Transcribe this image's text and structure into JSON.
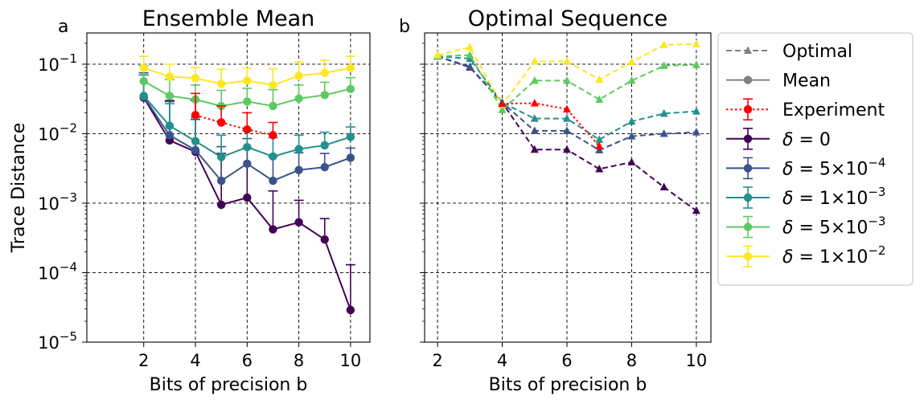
{
  "chart_data": [
    {
      "type": "line",
      "panel_letter": "a",
      "title": "Ensemble Mean",
      "xlabel": "Bits of precision b",
      "ylabel": "Trace Distance",
      "xlim": [
        -0.2,
        10.75
      ],
      "ylim_log10": [
        -5,
        -0.55
      ],
      "yscale": "log",
      "xticks": [
        2,
        4,
        6,
        8,
        10
      ],
      "xtick_labels": [
        "2",
        "4",
        "6",
        "8",
        "10"
      ],
      "yticks": [
        1e-05,
        0.0001,
        0.001,
        0.01,
        0.1
      ],
      "ytick_labels": [
        {
          "base": "10",
          "exp": "−5"
        },
        {
          "base": "10",
          "exp": "−4"
        },
        {
          "base": "10",
          "exp": "−3"
        },
        {
          "base": "10",
          "exp": "−2"
        },
        {
          "base": "10",
          "exp": "−1"
        }
      ],
      "grid": true,
      "grid_style": "dashed",
      "series": [
        {
          "name": "δ = 0",
          "color": "#440154",
          "style": "solid",
          "marker": "circle",
          "x": [
            2,
            3,
            4,
            5,
            6,
            7,
            8,
            9,
            10
          ],
          "y": [
            0.033,
            0.008,
            0.0055,
            0.00095,
            0.0012,
            0.00042,
            0.00053,
            0.0003,
            2.9e-05
          ],
          "err_upper": [
            0.07,
            0.03,
            0.03,
            0.0052,
            0.0062,
            0.0015,
            0.0011,
            0.0006,
            0.00013
          ]
        },
        {
          "name": "δ = 5×10⁻⁴",
          "color": "#3b528b",
          "style": "solid",
          "marker": "circle",
          "x": [
            2,
            3,
            4,
            5,
            6,
            7,
            8,
            9,
            10
          ],
          "y": [
            0.034,
            0.0095,
            0.0058,
            0.0021,
            0.0037,
            0.0021,
            0.003,
            0.0033,
            0.0045
          ],
          "err_upper": [
            0.075,
            0.029,
            0.016,
            0.0065,
            0.0085,
            0.0047,
            0.0053,
            0.0052,
            0.0062
          ]
        },
        {
          "name": "δ = 1×10⁻³",
          "color": "#21918c",
          "style": "solid",
          "marker": "circle",
          "x": [
            2,
            3,
            4,
            5,
            6,
            7,
            8,
            9,
            10
          ],
          "y": [
            0.035,
            0.013,
            0.0078,
            0.0046,
            0.0064,
            0.0047,
            0.006,
            0.0068,
            0.009
          ],
          "err_upper": [
            0.07,
            0.027,
            0.017,
            0.0095,
            0.011,
            0.0088,
            0.0095,
            0.0105,
            0.0125
          ]
        },
        {
          "name": "δ = 5×10⁻³",
          "color": "#5ec962",
          "style": "solid",
          "marker": "circle",
          "x": [
            2,
            3,
            4,
            5,
            6,
            7,
            8,
            9,
            10
          ],
          "y": [
            0.057,
            0.035,
            0.031,
            0.025,
            0.029,
            0.025,
            0.032,
            0.036,
            0.044
          ],
          "err_upper": [
            0.095,
            0.06,
            0.05,
            0.042,
            0.045,
            0.043,
            0.05,
            0.055,
            0.064
          ]
        },
        {
          "name": "δ = 1×10⁻²",
          "color": "#fde725",
          "style": "solid",
          "marker": "circle",
          "x": [
            2,
            3,
            4,
            5,
            6,
            7,
            8,
            9,
            10
          ],
          "y": [
            0.088,
            0.066,
            0.063,
            0.052,
            0.058,
            0.05,
            0.068,
            0.075,
            0.088
          ],
          "err_upper": [
            0.13,
            0.1,
            0.09,
            0.085,
            0.088,
            0.086,
            0.108,
            0.114,
            0.13
          ]
        },
        {
          "name": "Experiment",
          "color": "#ff0000",
          "style": "dotted",
          "marker": "circle",
          "x": [
            4,
            5,
            6,
            7
          ],
          "y": [
            0.0185,
            0.0145,
            0.0115,
            0.0095
          ],
          "err_upper": [
            0.038,
            0.025,
            0.02,
            0.0145
          ]
        }
      ]
    },
    {
      "type": "line",
      "panel_letter": "b",
      "title": "Optimal Sequence",
      "xlabel": "Bits of precision b",
      "ylabel": "",
      "xlim": [
        1.6,
        10.45
      ],
      "ylim_log10": [
        -5,
        -0.55
      ],
      "yscale": "log",
      "xticks": [
        2,
        4,
        6,
        8,
        10
      ],
      "xtick_labels": [
        "2",
        "4",
        "6",
        "8",
        "10"
      ],
      "grid": true,
      "grid_style": "dashed",
      "series": [
        {
          "name": "δ = 0",
          "color": "#440154",
          "style": "dashed",
          "marker": "triangle",
          "x": [
            2,
            3,
            4,
            5,
            6,
            7,
            8,
            9,
            10
          ],
          "y": [
            0.13,
            0.09,
            0.028,
            0.0059,
            0.0059,
            0.0031,
            0.0039,
            0.0017,
            0.00078
          ]
        },
        {
          "name": "δ = 5×10⁻⁴",
          "color": "#3b528b",
          "style": "dashed",
          "marker": "triangle",
          "x": [
            2,
            3,
            4,
            5,
            6,
            7,
            8,
            9,
            10
          ],
          "y": [
            0.13,
            0.092,
            0.028,
            0.011,
            0.011,
            0.0058,
            0.0092,
            0.01,
            0.0105
          ]
        },
        {
          "name": "δ = 1×10⁻³",
          "color": "#21918c",
          "style": "dashed",
          "marker": "triangle",
          "x": [
            2,
            3,
            4,
            5,
            6,
            7,
            8,
            9,
            10
          ],
          "y": [
            0.13,
            0.12,
            0.028,
            0.0165,
            0.0165,
            0.0082,
            0.015,
            0.0195,
            0.021
          ]
        },
        {
          "name": "δ = 5×10⁻³",
          "color": "#5ec962",
          "style": "dashed",
          "marker": "triangle",
          "x": [
            2,
            3,
            4,
            5,
            6,
            7,
            8,
            9,
            10
          ],
          "y": [
            0.13,
            0.135,
            0.022,
            0.058,
            0.058,
            0.031,
            0.058,
            0.095,
            0.098
          ]
        },
        {
          "name": "δ = 1×10⁻²",
          "color": "#fde725",
          "style": "dashed",
          "marker": "triangle",
          "x": [
            2,
            3,
            4,
            5,
            6,
            7,
            8,
            9,
            10
          ],
          "y": [
            0.135,
            0.175,
            0.026,
            0.11,
            0.11,
            0.06,
            0.108,
            0.19,
            0.195
          ]
        },
        {
          "name": "Experiment",
          "color": "#ff0000",
          "style": "dotted",
          "marker": "triangle",
          "x": [
            4,
            5,
            6,
            7
          ],
          "y": [
            0.027,
            0.0275,
            0.0225,
            0.0066
          ]
        }
      ]
    }
  ],
  "legend": {
    "placement": "outside-right",
    "entries": [
      {
        "label": "Optimal",
        "color": "#808080",
        "style": "dashed",
        "marker": "triangle",
        "math": false
      },
      {
        "label": "Mean",
        "color": "#808080",
        "style": "solid",
        "marker": "circle",
        "math": false
      },
      {
        "label": "Experiment",
        "color": "#ff0000",
        "style": "dotted",
        "marker": "circle",
        "errorbar": true,
        "math": false
      },
      {
        "label": "δ = 0",
        "color": "#440154",
        "style": "solid",
        "marker": "circle",
        "errorbar": true,
        "math": true,
        "delta_value": "0"
      },
      {
        "label": "δ = 5×10⁻⁴",
        "color": "#3b528b",
        "style": "solid",
        "marker": "circle",
        "errorbar": true,
        "math": true,
        "delta_value": "5×10",
        "delta_exp": "−4"
      },
      {
        "label": "δ = 1×10⁻³",
        "color": "#21918c",
        "style": "solid",
        "marker": "circle",
        "errorbar": true,
        "math": true,
        "delta_value": "1×10",
        "delta_exp": "−3"
      },
      {
        "label": "δ = 5×10⁻³",
        "color": "#5ec962",
        "style": "solid",
        "marker": "circle",
        "errorbar": true,
        "math": true,
        "delta_value": "5×10",
        "delta_exp": "−3"
      },
      {
        "label": "δ = 1×10⁻²",
        "color": "#fde725",
        "style": "solid",
        "marker": "circle",
        "errorbar": true,
        "math": true,
        "delta_value": "1×10",
        "delta_exp": "−2"
      }
    ]
  }
}
